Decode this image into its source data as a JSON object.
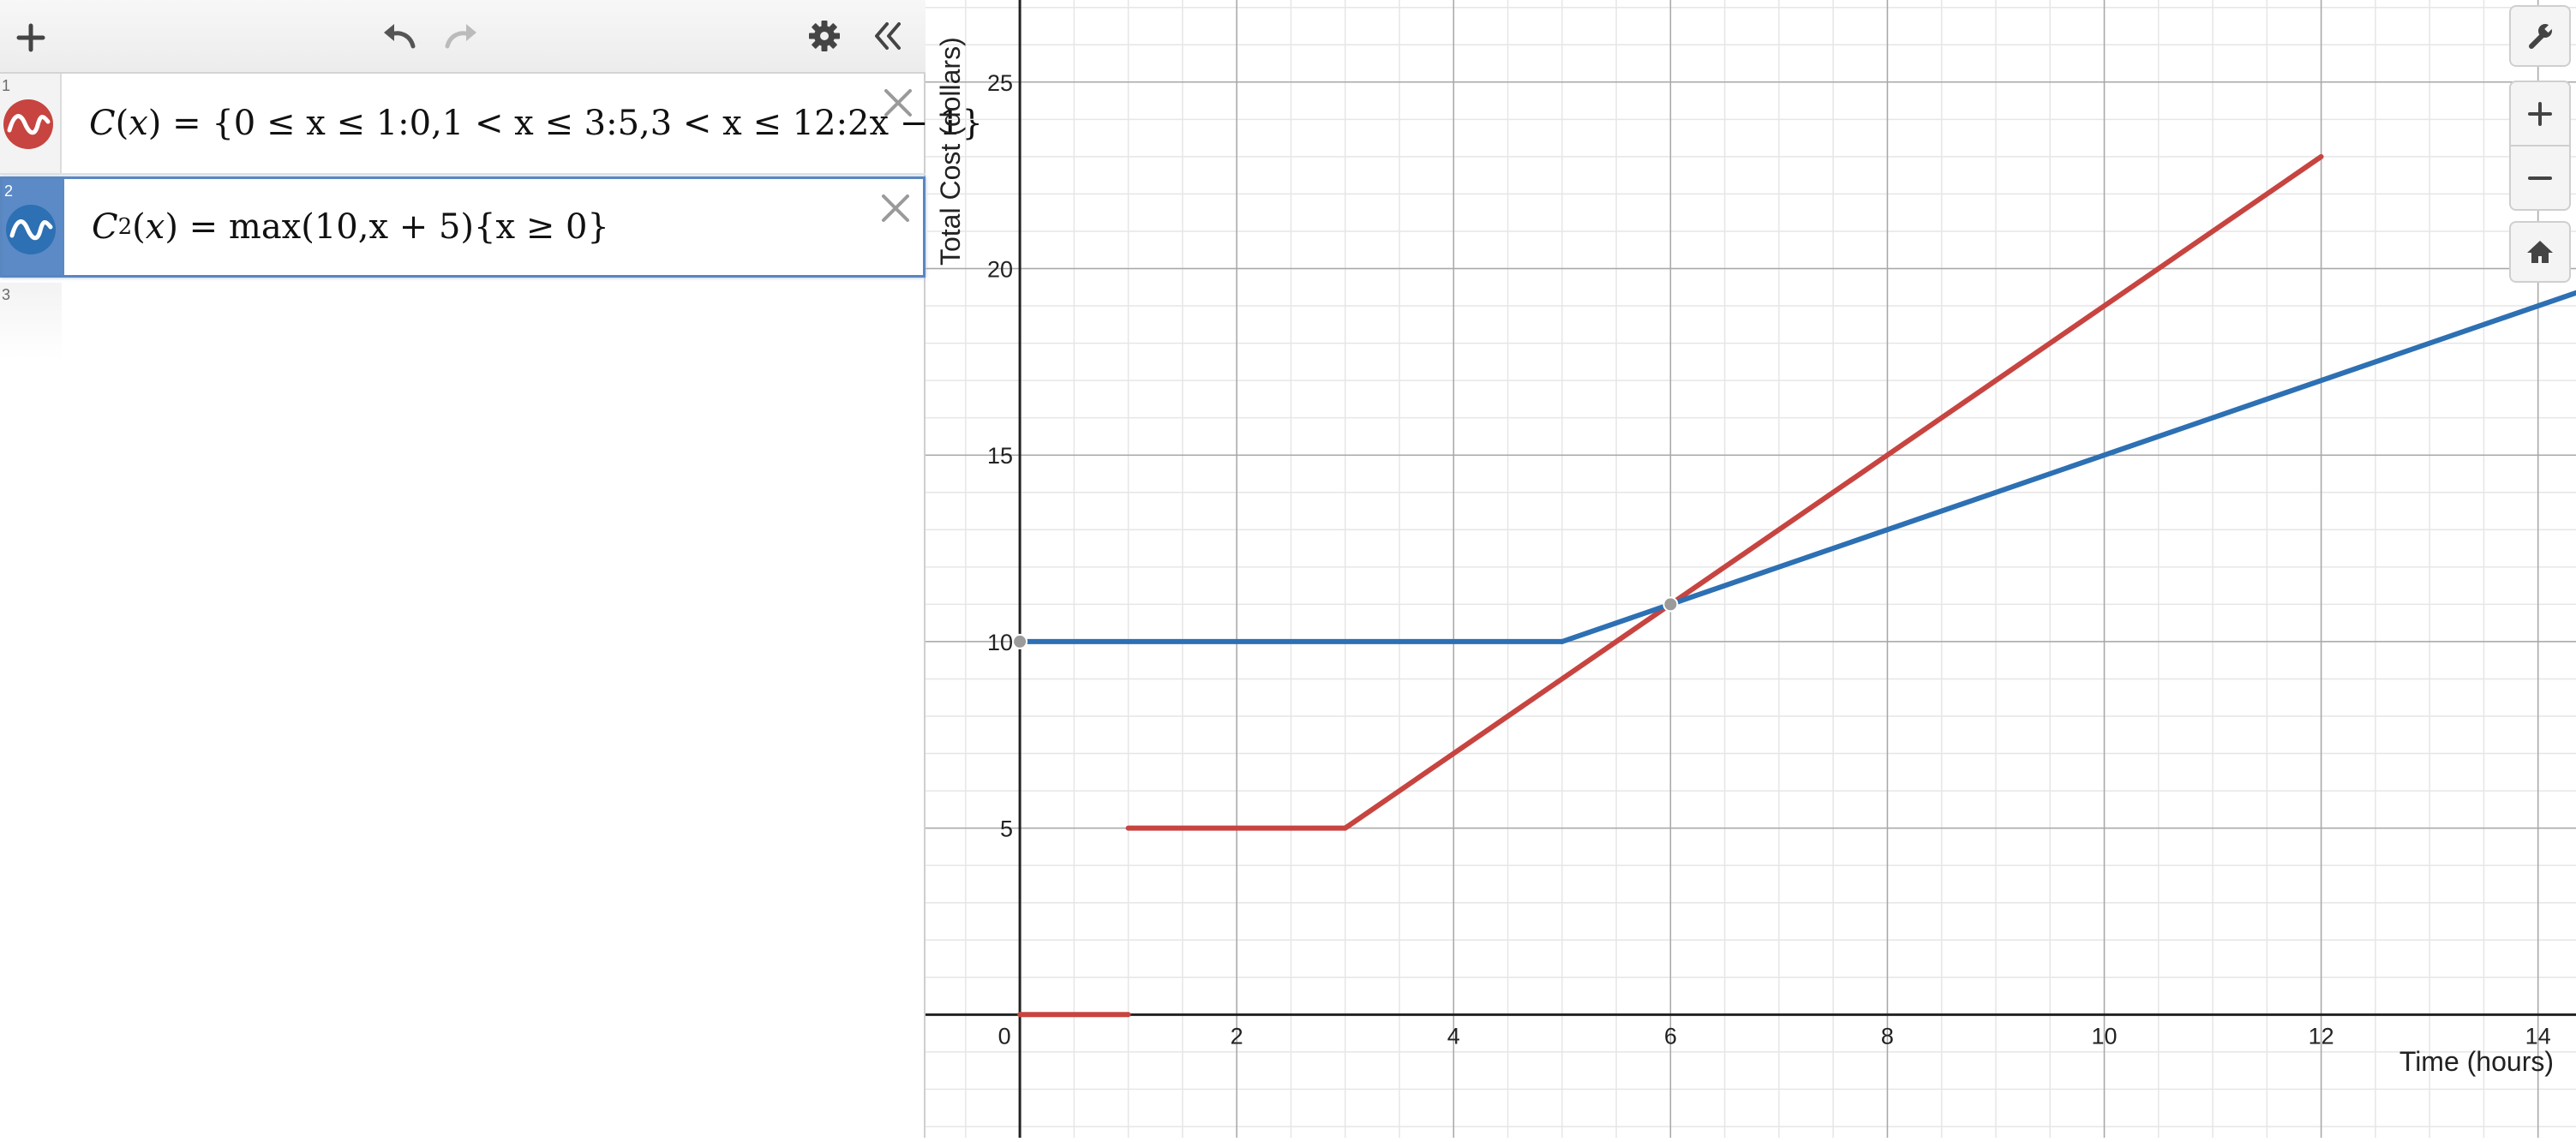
{
  "toolbar": {
    "add_icon": "plus-icon",
    "undo_icon": "undo-icon",
    "redo_icon": "redo-icon",
    "settings_icon": "gear-icon",
    "collapse_icon": "double-chevron-left-icon"
  },
  "expressions": [
    {
      "number": "1",
      "color": "#c74440",
      "name": "C",
      "sub": "",
      "arg": "x",
      "rhs": "{0 ≤ x ≤ 1:0,1 < x ≤ 3:5,3 < x ≤ 12:2x − 1}"
    },
    {
      "number": "2",
      "color": "#2d70b3",
      "name": "C",
      "sub": "2",
      "arg": "x",
      "rhs": "max(10,x + 5){x ≥ 0}"
    },
    {
      "number": "3"
    }
  ],
  "graph_controls": {
    "wrench_icon": "wrench-icon",
    "zoom_in_icon": "zoom-in-icon",
    "zoom_out_icon": "zoom-out-icon",
    "home_icon": "home-icon"
  },
  "chart_data": {
    "type": "line",
    "xlabel": "Time (hours)",
    "ylabel": "Total Cost (dollars)",
    "xlim": [
      -0.87,
      14.35
    ],
    "ylim": [
      -3.3,
      27.2
    ],
    "x_ticks": [
      0,
      2,
      4,
      6,
      8,
      10,
      12,
      14
    ],
    "y_ticks": [
      5,
      10,
      15,
      20,
      25
    ],
    "major_grid_step": 2,
    "major_grid_step_y": 5,
    "minor_grid_step_x": 0.5,
    "minor_grid_step_y": 1,
    "grid": true,
    "series": [
      {
        "color": "#c74440",
        "segments": [
          [
            [
              0,
              0
            ],
            [
              1,
              0
            ]
          ],
          [
            [
              1,
              5
            ],
            [
              3,
              5
            ]
          ],
          [
            [
              3,
              5
            ],
            [
              12,
              23
            ]
          ]
        ]
      },
      {
        "color": "#2d70b3",
        "segments": [
          [
            [
              0,
              10
            ],
            [
              5,
              10
            ]
          ],
          [
            [
              5,
              10
            ],
            [
              14.35,
              19.35
            ]
          ]
        ]
      }
    ],
    "points": [
      {
        "x": 0,
        "y": 10
      },
      {
        "x": 6,
        "y": 11
      }
    ]
  }
}
